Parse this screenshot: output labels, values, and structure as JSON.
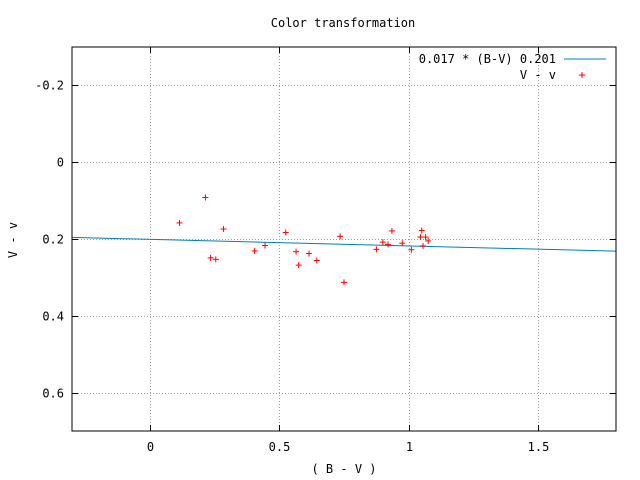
{
  "chart_data": {
    "type": "scatter",
    "title": "Color transformation",
    "xlabel": "( B - V )",
    "ylabel": "V - v",
    "xlim": [
      -0.3,
      1.8
    ],
    "ylim": [
      -0.3,
      0.7
    ],
    "y_inverted": true,
    "grid": true,
    "legend_position": "top-right",
    "x_ticks": [
      {
        "value": 0,
        "label": "0"
      },
      {
        "value": 0.5,
        "label": "0.5"
      },
      {
        "value": 1,
        "label": "1"
      },
      {
        "value": 1.5,
        "label": "1.5"
      }
    ],
    "y_ticks": [
      {
        "value": -0.2,
        "label": "-0.2"
      },
      {
        "value": 0,
        "label": "0"
      },
      {
        "value": 0.2,
        "label": "0.2"
      },
      {
        "value": 0.4,
        "label": "0.4"
      },
      {
        "value": 0.6,
        "label": "0.6"
      }
    ],
    "series": [
      {
        "name": "0.017 * (B-V) 0.201",
        "kind": "line",
        "color": "#0080b0",
        "slope": 0.017,
        "intercept": 0.201
      },
      {
        "name": "V - v",
        "kind": "points",
        "color": "#ff0000",
        "marker": "+",
        "x": [
          0.115,
          0.215,
          0.235,
          0.255,
          0.285,
          0.405,
          0.445,
          0.525,
          0.565,
          0.575,
          0.615,
          0.645,
          0.735,
          0.75,
          0.875,
          0.9,
          0.92,
          0.935,
          0.975,
          1.01,
          1.045,
          1.05,
          1.055,
          1.065,
          1.075
        ],
        "y": [
          0.158,
          0.092,
          0.249,
          0.253,
          0.174,
          0.231,
          0.217,
          0.183,
          0.233,
          0.268,
          0.238,
          0.256,
          0.193,
          0.313,
          0.227,
          0.208,
          0.214,
          0.179,
          0.211,
          0.228,
          0.195,
          0.178,
          0.218,
          0.195,
          0.205
        ]
      }
    ]
  }
}
